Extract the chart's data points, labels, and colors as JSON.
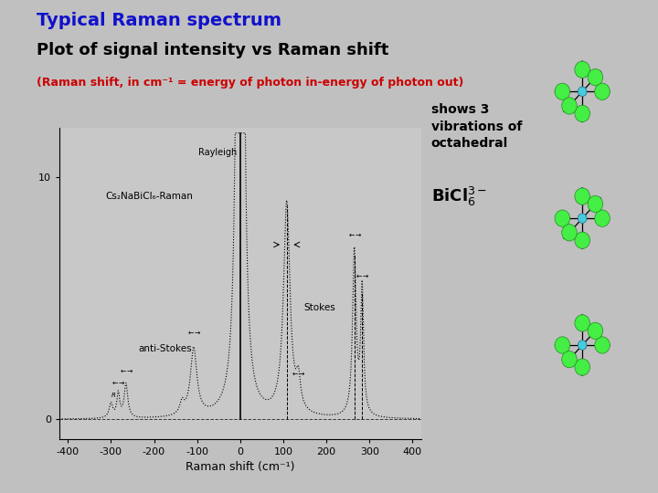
{
  "title1": "Typical Raman spectrum",
  "title2": "Plot of signal intensity vs Raman shift",
  "subtitle": "(Raman shift, in cm⁻¹ = energy of photon in-energy of photon out)",
  "xlabel": "Raman shift (cm⁻¹)",
  "xlim": [
    -420,
    420
  ],
  "ylim": [
    -0.8,
    12
  ],
  "yticks": [
    0,
    10
  ],
  "xticks": [
    -400,
    -300,
    -200,
    -100,
    0,
    100,
    200,
    300,
    400
  ],
  "bg_color": "#c0c0c0",
  "plot_bg_color": "#c8c8c8",
  "title1_color": "#1111cc",
  "title2_color": "#000000",
  "subtitle_color": "#cc0000",
  "label_cs2nabicl6": "Cs₂NaBiCl₆-Raman",
  "label_rayleigh": "Rayleigh",
  "label_antistokes": "anti-Stokes",
  "label_stokes": "Stokes",
  "label_shows": "shows 3\nvibrations of\noctahedral",
  "label_bicl63": "BiCl₆³⁻"
}
